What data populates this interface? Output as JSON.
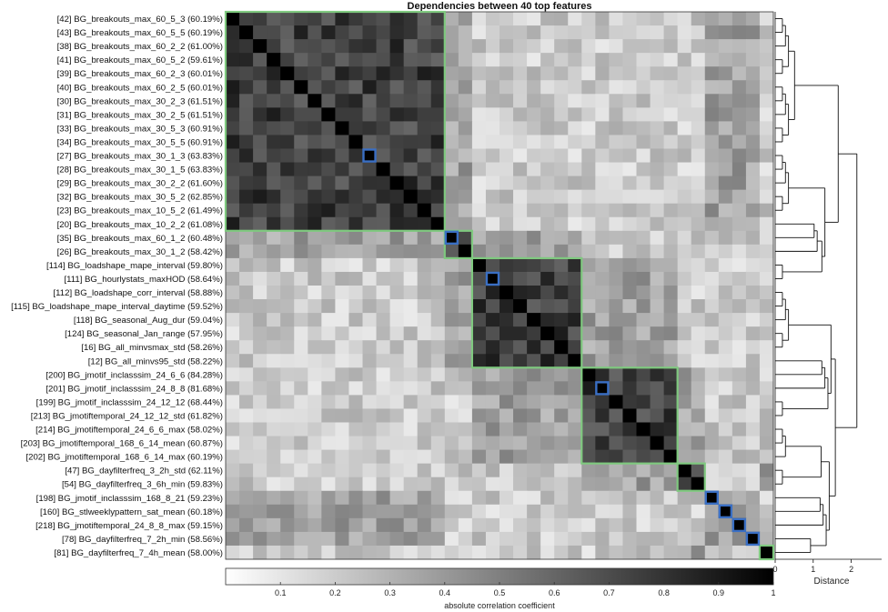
{
  "chart_data": {
    "type": "heatmap",
    "title": "Dependencies between 40 top features",
    "row_labels": [
      "[42] BG_breakouts_max_60_5_3 (60.19%)",
      "[43] BG_breakouts_max_60_5_5 (60.19%)",
      "[38] BG_breakouts_max_60_2_2 (61.00%)",
      "[41] BG_breakouts_max_60_5_2 (59.61%)",
      "[39] BG_breakouts_max_60_2_3 (60.01%)",
      "[40] BG_breakouts_max_60_2_5 (60.01%)",
      "[30] BG_breakouts_max_30_2_3 (61.51%)",
      "[31] BG_breakouts_max_30_2_5 (61.51%)",
      "[33] BG_breakouts_max_30_5_3 (60.91%)",
      "[34] BG_breakouts_max_30_5_5 (60.91%)",
      "[27] BG_breakouts_max_30_1_3 (63.83%)",
      "[28] BG_breakouts_max_30_1_5 (63.83%)",
      "[29] BG_breakouts_max_30_2_2 (61.60%)",
      "[32] BG_breakouts_max_30_5_2 (62.85%)",
      "[23] BG_breakouts_max_10_5_2 (61.49%)",
      "[20] BG_breakouts_max_10_2_2 (61.08%)",
      "[35] BG_breakouts_max_60_1_2 (60.48%)",
      "[26] BG_breakouts_max_30_1_2 (58.42%)",
      "[114] BG_loadshape_mape_interval (59.80%)",
      "[111] BG_hourlystats_maxHOD (58.64%)",
      "[112] BG_loadshape_corr_interval (58.88%)",
      "[115] BG_loadshape_mape_interval_daytime (59.52%)",
      "[118] BG_seasonal_Aug_dur (59.04%)",
      "[124] BG_seasonal_Jan_range (57.95%)",
      "[16] BG_all_minvsmax_std (58.26%)",
      "[12] BG_all_minvs95_std (58.22%)",
      "[200] BG_jmotif_inclasssim_24_6_6 (84.28%)",
      "[201] BG_jmotif_inclasssim_24_8_8 (81.68%)",
      "[199] BG_jmotif_inclasssim_24_12_12 (68.44%)",
      "[213] BG_jmotiftemporal_24_12_12_std (61.82%)",
      "[214] BG_jmotiftemporal_24_6_6_max (58.02%)",
      "[203] BG_jmotiftemporal_168_6_14_mean (60.87%)",
      "[202] BG_jmotiftemporal_168_6_14_max (60.19%)",
      "[47] BG_dayfilterfreq_3_2h_std (62.11%)",
      "[54] BG_dayfilterfreq_3_6h_min (59.83%)",
      "[198] BG_jmotif_inclasssim_168_8_21 (59.23%)",
      "[160] BG_stlweeklypattern_sat_mean (60.18%)",
      "[218] BG_jmotiftemporal_24_8_8_max (59.15%)",
      "[78] BG_dayfilterfreq_7_2h_min (58.56%)",
      "[81] BG_dayfilterfreq_7_4h_mean (58.00%)"
    ],
    "clusters": [
      {
        "start": 1,
        "end": 16
      },
      {
        "start": 17,
        "end": 18
      },
      {
        "start": 19,
        "end": 26
      },
      {
        "start": 27,
        "end": 33
      },
      {
        "start": 34,
        "end": 35
      },
      {
        "start": 40,
        "end": 40
      }
    ],
    "highlighted_cells": [
      11,
      17,
      20,
      28,
      36,
      37,
      38,
      39
    ],
    "colorbar": {
      "label": "absolute correlation coefficient",
      "min": 0,
      "max": 1,
      "ticks": [
        "0.1",
        "0.2",
        "0.3",
        "0.4",
        "0.5",
        "0.6",
        "0.7",
        "0.8",
        "0.9",
        "1"
      ]
    },
    "dendrogram": {
      "xlabel": "Distance",
      "xlim": [
        0,
        2.8
      ],
      "ticks": [
        "0",
        "1",
        "2"
      ]
    },
    "colors": {
      "cluster_outline": "#7fc97f",
      "highlight_outline": "#3a6fc4",
      "low": "#ffffff",
      "high": "#000000"
    },
    "cell_seed": 7
  }
}
